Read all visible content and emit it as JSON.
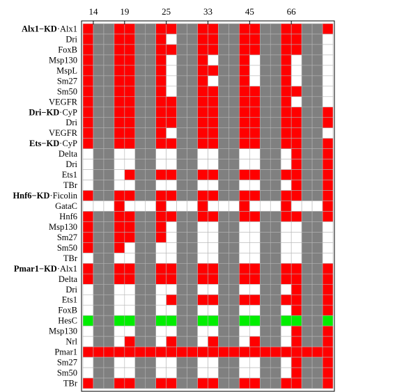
{
  "chart_data": {
    "type": "heatmap",
    "x_tick_labels": [
      {
        "col": 1,
        "label": "14"
      },
      {
        "col": 4,
        "label": "19"
      },
      {
        "col": 8,
        "label": "25"
      },
      {
        "col": 12,
        "label": "33"
      },
      {
        "col": 16,
        "label": "45"
      },
      {
        "col": 20,
        "label": "66"
      }
    ],
    "legend": {
      "codes": {
        "R": "red",
        "G": "gray",
        "W": "white",
        "L": "green"
      },
      "colors": {
        "R": "#ff0000",
        "G": "#808080",
        "W": "#ffffff",
        "L": "#00ee00"
      }
    },
    "rows": [
      {
        "group": "Alx1−KD",
        "gene": "Alx1",
        "cells": "RGGRRGGRRGGRRGGRRGGRRGGR"
      },
      {
        "group": "",
        "gene": "Dri",
        "cells": "RGGRRGGRWGGRRGGRRGGRRGGW"
      },
      {
        "group": "",
        "gene": "FoxB",
        "cells": "RGGRRGGRRGGRRGGRRGGRRGGW"
      },
      {
        "group": "",
        "gene": "Msp130",
        "cells": "RGGRRGGRWGGRWGGRWGGRWGGW"
      },
      {
        "group": "",
        "gene": "MspL",
        "cells": "RGGRRGGRWGGRRGGRWGGRWGGW"
      },
      {
        "group": "",
        "gene": "Sm27",
        "cells": "RGGRRGGRWGGRWGGRWGGRWGGW"
      },
      {
        "group": "",
        "gene": "Sm50",
        "cells": "RGGRRGGRWGGRRGGRRGGRRGGW"
      },
      {
        "group": "",
        "gene": "VEGFR",
        "cells": "RGGRRGGRRGGRRGGRRGGRWGGW"
      },
      {
        "group": "Dri−KD",
        "gene": "CyP",
        "cells": "RGGRRGGRRGGRRGGRRGGRRGGR"
      },
      {
        "group": "",
        "gene": "Dri",
        "cells": "RGGRRGGRRGGRRGGRRGGRRGGR"
      },
      {
        "group": "",
        "gene": "VEGFR",
        "cells": "RGGRRGGRWGGRRGGRRGGRRGGW"
      },
      {
        "group": "Ets−KD",
        "gene": "CyP",
        "cells": "RGGRRGGRRGGRRGGRRGGRRGGR"
      },
      {
        "group": "",
        "gene": "Delta",
        "cells": "WGGWWGGWWGGWWGGWWGGWRGGR"
      },
      {
        "group": "",
        "gene": "Dri",
        "cells": "WGGWWGGWWGGWWGGWWGGWRGGR"
      },
      {
        "group": "",
        "gene": "Ets1",
        "cells": "WGGWRGGRRGGRRGGRRGGRRGGR"
      },
      {
        "group": "",
        "gene": "TBr",
        "cells": "WGGWWGGWWGGWWGGWWGGWRGGR"
      },
      {
        "group": "Hnf6−KD",
        "gene": "Ficolin",
        "cells": "RGGRRGGRRGGRRGGRRGGRRGGR"
      },
      {
        "group": "",
        "gene": "GataC",
        "cells": "WWWRWWWRWWWRWWWRWWWRWWWR"
      },
      {
        "group": "",
        "gene": "Hnf6",
        "cells": "RGGRRGGRRGGRRGGRRGGRRGGR"
      },
      {
        "group": "",
        "gene": "Msp130",
        "cells": "RGGRRGGRWGGWWGGWWGGWWGGW"
      },
      {
        "group": "",
        "gene": "Sm27",
        "cells": "RGGRRGGRWGGWWGGWWGGWWGGW"
      },
      {
        "group": "",
        "gene": "Sm50",
        "cells": "RGGRWGGWWGGWWGGWWGGWWGGW"
      },
      {
        "group": "",
        "gene": "TBr",
        "cells": "WGGWWGGWWGGWWGGWWGGWWGGW"
      },
      {
        "group": "Pmar1−KD",
        "gene": "Alx1",
        "cells": "RGGRRGGRRGGRRGGRRGGRRGGR"
      },
      {
        "group": "",
        "gene": "Delta",
        "cells": "RGGRRGGRRGGRRGGRRGGRRGGR"
      },
      {
        "group": "",
        "gene": "Dri",
        "cells": "WGGWWGGWWGGWWGGWWGGWRGGR"
      },
      {
        "group": "",
        "gene": "Ets1",
        "cells": "WGGWWGGWRGGRRGGRRGGRRGGR"
      },
      {
        "group": "",
        "gene": "FoxB",
        "cells": "WGGWWGGWWGGWWGGWWGGWRGGR"
      },
      {
        "group": "",
        "gene": "HesC",
        "cells": "LGGLLGGLLGGLLGGLLGGLLGGL"
      },
      {
        "group": "",
        "gene": "Msp130",
        "cells": "WGGWWGGWWGGWWGGWWGGWRGGR"
      },
      {
        "group": "",
        "gene": "Nrl",
        "cells": "WGGWRGGWRGGWRGGWRGGWRGGR"
      },
      {
        "group": "",
        "gene": "Pmar1",
        "cells": "RRRRRRRRRRRRRRRRRRRRRRRR"
      },
      {
        "group": "",
        "gene": "Sm27",
        "cells": "WGGWWGGWWGGWWGGWWGGWRGGR"
      },
      {
        "group": "",
        "gene": "Sm50",
        "cells": "WGGWWGGWWGGWWGGWWGGWRGGR"
      },
      {
        "group": "",
        "gene": "TBr",
        "cells": "RGGRRGGRRGGRRGGRRGGRRGGR"
      }
    ]
  }
}
